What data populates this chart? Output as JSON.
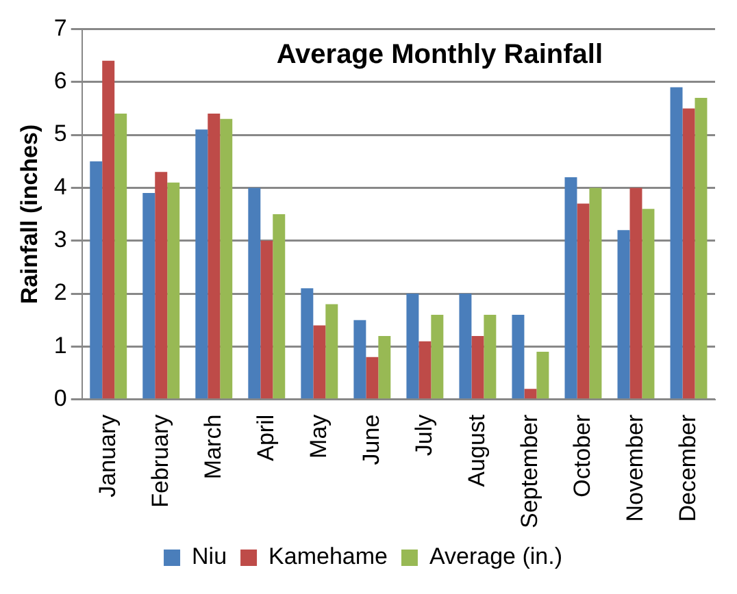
{
  "chart_data": {
    "type": "bar",
    "title": "Average Monthly Rainfall",
    "ylabel": "Rainfall (inches)",
    "categories": [
      "January",
      "February",
      "March",
      "April",
      "May",
      "June",
      "July",
      "August",
      "September",
      "October",
      "November",
      "December"
    ],
    "series": [
      {
        "name": "Niu",
        "color": "#4a7ebb",
        "values": [
          4.5,
          3.9,
          5.1,
          4.0,
          2.1,
          1.5,
          2.0,
          2.0,
          1.6,
          4.2,
          3.2,
          5.9
        ]
      },
      {
        "name": "Kamehame",
        "color": "#be4b48",
        "values": [
          6.4,
          4.3,
          5.4,
          3.0,
          1.4,
          0.8,
          1.1,
          1.2,
          0.2,
          3.7,
          4.0,
          5.5
        ]
      },
      {
        "name": "Average (in.)",
        "color": "#98b954",
        "values": [
          5.4,
          4.1,
          5.3,
          3.5,
          1.8,
          1.2,
          1.6,
          1.6,
          0.9,
          4.0,
          3.6,
          5.7
        ]
      }
    ],
    "ylim": [
      0,
      7
    ],
    "yticks": [
      0,
      1,
      2,
      3,
      4,
      5,
      6,
      7
    ],
    "grid": "y",
    "legend": "bottom"
  }
}
